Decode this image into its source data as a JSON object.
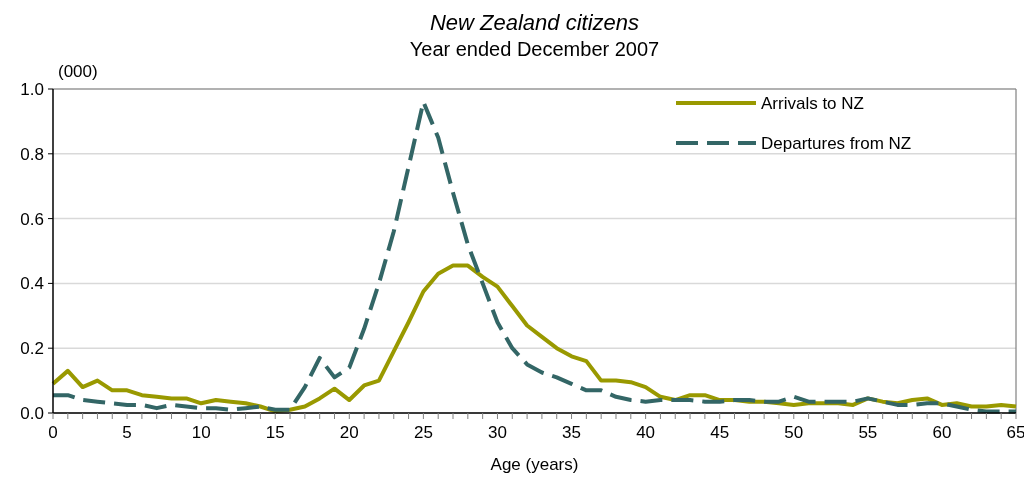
{
  "chart_data": {
    "type": "line",
    "title": "New Zealand citizens",
    "subtitle": "Year ended December 2007",
    "ylabel": "(000)",
    "xlabel": "Age (years)",
    "x": [
      0,
      1,
      2,
      3,
      4,
      5,
      6,
      7,
      8,
      9,
      10,
      11,
      12,
      13,
      14,
      15,
      16,
      17,
      18,
      19,
      20,
      21,
      22,
      23,
      24,
      25,
      26,
      27,
      28,
      29,
      30,
      31,
      32,
      33,
      34,
      35,
      36,
      37,
      38,
      39,
      40,
      41,
      42,
      43,
      44,
      45,
      46,
      47,
      48,
      49,
      50,
      51,
      52,
      53,
      54,
      55,
      56,
      57,
      58,
      59,
      60,
      61,
      62,
      63,
      64,
      65
    ],
    "series": [
      {
        "name": "Arrivals to NZ",
        "color": "#999900",
        "line_style": "solid",
        "values": [
          0.09,
          0.13,
          0.08,
          0.1,
          0.07,
          0.07,
          0.055,
          0.05,
          0.045,
          0.045,
          0.03,
          0.04,
          0.035,
          0.03,
          0.02,
          0.005,
          0.01,
          0.02,
          0.045,
          0.075,
          0.04,
          0.085,
          0.1,
          0.19,
          0.28,
          0.375,
          0.43,
          0.455,
          0.455,
          0.42,
          0.39,
          0.33,
          0.27,
          0.235,
          0.2,
          0.175,
          0.16,
          0.1,
          0.1,
          0.095,
          0.08,
          0.05,
          0.04,
          0.055,
          0.055,
          0.04,
          0.04,
          0.035,
          0.035,
          0.03,
          0.025,
          0.03,
          0.03,
          0.03,
          0.025,
          0.045,
          0.035,
          0.03,
          0.04,
          0.045,
          0.025,
          0.03,
          0.02,
          0.02,
          0.025,
          0.02
        ]
      },
      {
        "name": "Departures from NZ",
        "color": "#336666",
        "line_style": "dashed",
        "values": [
          0.055,
          0.055,
          0.04,
          0.035,
          0.03,
          0.025,
          0.025,
          0.015,
          0.025,
          0.02,
          0.015,
          0.015,
          0.01,
          0.015,
          0.02,
          0.01,
          0.01,
          0.08,
          0.17,
          0.11,
          0.14,
          0.26,
          0.4,
          0.56,
          0.76,
          0.96,
          0.85,
          0.68,
          0.52,
          0.4,
          0.28,
          0.2,
          0.15,
          0.125,
          0.11,
          0.09,
          0.07,
          0.07,
          0.05,
          0.04,
          0.035,
          0.04,
          0.04,
          0.04,
          0.035,
          0.035,
          0.04,
          0.04,
          0.035,
          0.035,
          0.05,
          0.035,
          0.035,
          0.035,
          0.035,
          0.045,
          0.035,
          0.025,
          0.025,
          0.03,
          0.03,
          0.02,
          0.01,
          0.005,
          0.005,
          0.005
        ]
      }
    ],
    "xlim": [
      0,
      65
    ],
    "xticks": [
      0,
      {
        "value": 1,
        "label": null
      },
      {
        "value": 2,
        "label": null
      },
      {
        "value": 3,
        "label": null
      },
      {
        "value": 4,
        "label": null
      },
      5,
      {
        "value": 6,
        "label": null
      },
      {
        "value": 7,
        "label": null
      },
      {
        "value": 8,
        "label": null
      },
      {
        "value": 9,
        "label": null
      },
      10,
      {
        "value": 11,
        "label": null
      },
      {
        "value": 12,
        "label": null
      },
      {
        "value": 13,
        "label": null
      },
      {
        "value": 14,
        "label": null
      },
      15,
      {
        "value": 16,
        "label": null
      },
      {
        "value": 17,
        "label": null
      },
      {
        "value": 18,
        "label": null
      },
      {
        "value": 19,
        "label": null
      },
      20,
      {
        "value": 21,
        "label": null
      },
      {
        "value": 22,
        "label": null
      },
      {
        "value": 23,
        "label": null
      },
      {
        "value": 24,
        "label": null
      },
      25,
      {
        "value": 26,
        "label": null
      },
      {
        "value": 27,
        "label": null
      },
      {
        "value": 28,
        "label": null
      },
      {
        "value": 29,
        "label": null
      },
      30,
      {
        "value": 31,
        "label": null
      },
      {
        "value": 32,
        "label": null
      },
      {
        "value": 33,
        "label": null
      },
      {
        "value": 34,
        "label": null
      },
      35,
      {
        "value": 36,
        "label": null
      },
      {
        "value": 37,
        "label": null
      },
      {
        "value": 38,
        "label": null
      },
      {
        "value": 39,
        "label": null
      },
      40,
      {
        "value": 41,
        "label": null
      },
      {
        "value": 42,
        "label": null
      },
      {
        "value": 43,
        "label": null
      },
      {
        "value": 44,
        "label": null
      },
      45,
      {
        "value": 46,
        "label": null
      },
      {
        "value": 47,
        "label": null
      },
      {
        "value": 48,
        "label": null
      },
      {
        "value": 49,
        "label": null
      },
      50,
      {
        "value": 51,
        "label": null
      },
      {
        "value": 52,
        "label": null
      },
      {
        "value": 53,
        "label": null
      },
      {
        "value": 54,
        "label": null
      },
      55,
      {
        "value": 56,
        "label": null
      },
      {
        "value": 57,
        "label": null
      },
      {
        "value": 58,
        "label": null
      },
      {
        "value": 59,
        "label": null
      },
      60,
      {
        "value": 61,
        "label": null
      },
      {
        "value": 62,
        "label": null
      },
      {
        "value": 63,
        "label": null
      },
      {
        "value": 64,
        "label": null
      },
      65
    ],
    "ylim": [
      0,
      1
    ],
    "yticks": [
      {
        "value": 0,
        "label": "0.0"
      },
      0.2,
      0.4,
      0.6,
      0.8,
      {
        "value": 1,
        "label": "1.0"
      }
    ],
    "grid": "y",
    "legend": "top right"
  }
}
